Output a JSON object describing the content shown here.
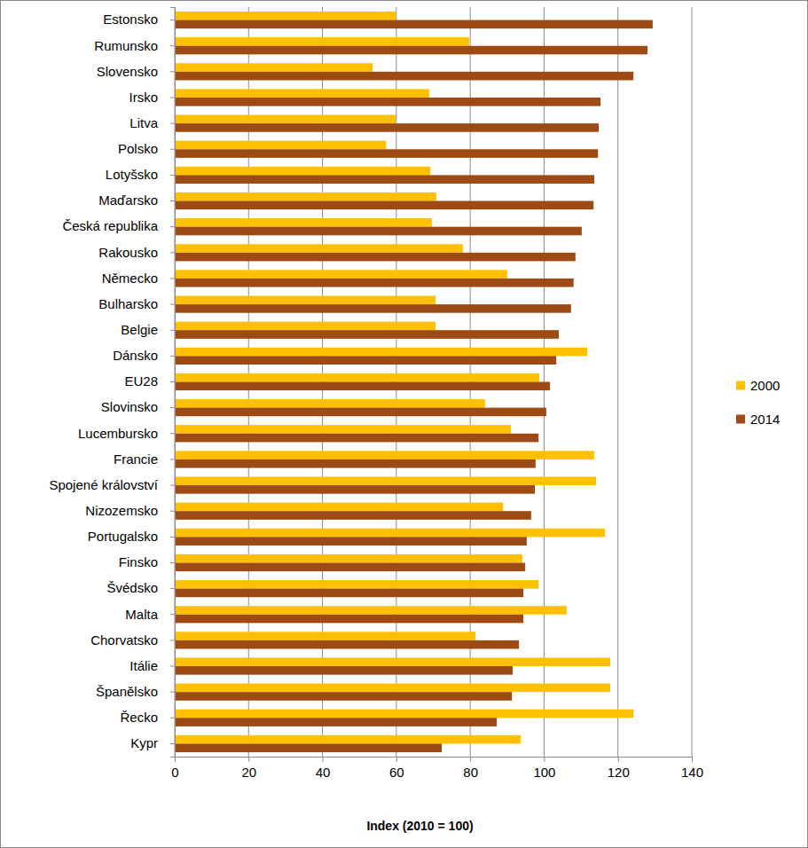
{
  "chart_data": {
    "type": "bar",
    "orientation": "horizontal",
    "categories": [
      "Estonsko",
      "Rumunsko",
      "Slovensko",
      "Irsko",
      "Litva",
      "Polsko",
      "Lotyšsko",
      "Maďarsko",
      "Česká republika",
      "Rakousko",
      "Německo",
      "Bulharsko",
      "Belgie",
      "Dánsko",
      "EU28",
      "Slovinsko",
      "Lucembursko",
      "Francie",
      "Spojené království",
      "Nizozemsko",
      "Portugalsko",
      "Finsko",
      "Švédsko",
      "Malta",
      "Chorvatsko",
      "Itálie",
      "Španělsko",
      "Řecko",
      "Kypr"
    ],
    "series": [
      {
        "name": "2000",
        "color": "#FFC000",
        "values": [
          59.8,
          79.7,
          53.6,
          68.9,
          59.8,
          57.2,
          69.2,
          70.8,
          69.6,
          78.0,
          90.0,
          70.6,
          70.6,
          111.7,
          98.7,
          84.0,
          91.0,
          113.6,
          114.1,
          88.9,
          116.5,
          94.1,
          98.5,
          106.1,
          81.4,
          117.9,
          117.9,
          124.2,
          93.7
        ]
      },
      {
        "name": "2014",
        "color": "#9E4A14",
        "values": [
          129.4,
          128.0,
          124.2,
          115.3,
          114.8,
          114.6,
          113.6,
          113.4,
          110.2,
          108.5,
          108.0,
          107.3,
          104.0,
          103.3,
          101.6,
          100.6,
          98.5,
          97.7,
          97.5,
          96.5,
          95.3,
          94.9,
          94.4,
          94.4,
          93.2,
          91.5,
          91.3,
          87.2,
          72.3
        ]
      }
    ],
    "x_label": "Index (2010 = 100)",
    "xlim": [
      0,
      140
    ],
    "xticks": [
      0,
      20,
      40,
      60,
      80,
      100,
      120,
      140
    ],
    "grid": true,
    "legend": "right"
  }
}
